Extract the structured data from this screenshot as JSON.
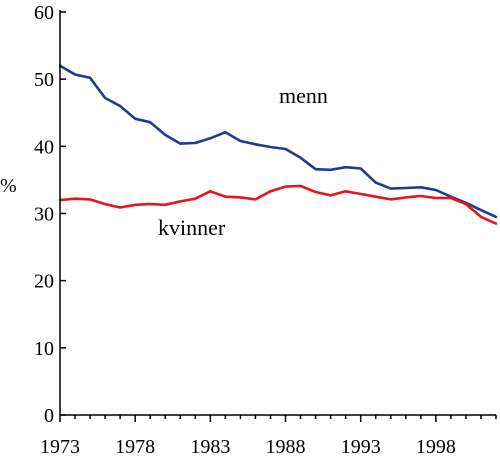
{
  "chart_data": {
    "type": "line",
    "ylabel": "%",
    "xlim": [
      1973,
      2002
    ],
    "ylim": [
      0,
      60
    ],
    "yticks": [
      0,
      10,
      20,
      30,
      40,
      50,
      60
    ],
    "xticks": [
      1973,
      1978,
      1983,
      1988,
      1993,
      1998
    ],
    "grid": false,
    "x": [
      1973,
      1974,
      1975,
      1976,
      1977,
      1978,
      1979,
      1980,
      1981,
      1982,
      1983,
      1984,
      1985,
      1986,
      1987,
      1988,
      1989,
      1990,
      1991,
      1992,
      1993,
      1994,
      1995,
      1996,
      1997,
      1998,
      1999,
      2000,
      2001,
      2002
    ],
    "series": [
      {
        "name": "menn",
        "color": "#1f3a93",
        "values": [
          52.0,
          50.7,
          50.2,
          47.2,
          46.0,
          44.1,
          43.6,
          41.7,
          40.4,
          40.5,
          41.2,
          42.1,
          40.8,
          40.3,
          39.9,
          39.6,
          38.3,
          36.6,
          36.5,
          36.9,
          36.7,
          34.6,
          33.7,
          33.8,
          33.9,
          33.5,
          32.5,
          31.6,
          30.5,
          29.5
        ]
      },
      {
        "name": "kvinner",
        "color": "#e8141c",
        "values": [
          32.0,
          32.2,
          32.1,
          31.4,
          30.9,
          31.3,
          31.4,
          31.3,
          31.8,
          32.2,
          33.3,
          32.5,
          32.4,
          32.1,
          33.3,
          34.0,
          34.1,
          33.2,
          32.7,
          33.3,
          32.9,
          32.5,
          32.1,
          32.4,
          32.6,
          32.3,
          32.3,
          31.4,
          29.5,
          28.5
        ]
      }
    ]
  }
}
